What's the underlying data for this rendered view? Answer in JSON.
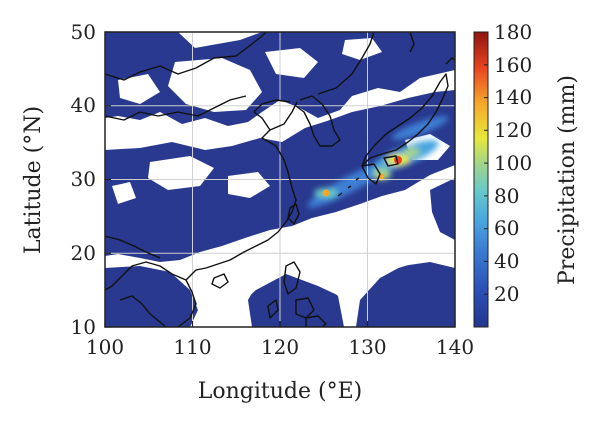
{
  "chart_data": {
    "type": "heatmap",
    "title": "",
    "xlabel": "Longitude (°E)",
    "ylabel": "Latitude (°N)",
    "xlim": [
      100,
      140
    ],
    "ylim": [
      10,
      50
    ],
    "x_ticks": [
      "100",
      "110",
      "120",
      "130",
      "140"
    ],
    "y_ticks": [
      "10",
      "20",
      "30",
      "40",
      "50"
    ],
    "colorbar": {
      "label": "Precipitation (mm)",
      "range": [
        0,
        180
      ],
      "ticks": [
        "20",
        "40",
        "60",
        "80",
        "100",
        "120",
        "140",
        "160",
        "180"
      ],
      "colors": [
        "#24358e",
        "#2a4fb5",
        "#3a78d0",
        "#49a6e0",
        "#66c9c9",
        "#9fd48b",
        "#e6e83a",
        "#f6a62a",
        "#e8431f",
        "#8e1410"
      ]
    },
    "grid": true,
    "maxima": [
      {
        "lon": 133.0,
        "lat": 32.5,
        "value": 170
      },
      {
        "lon": 124.7,
        "lat": 28.0,
        "value": 110
      },
      {
        "lon": 130.7,
        "lat": 30.3,
        "value": 110
      }
    ]
  }
}
